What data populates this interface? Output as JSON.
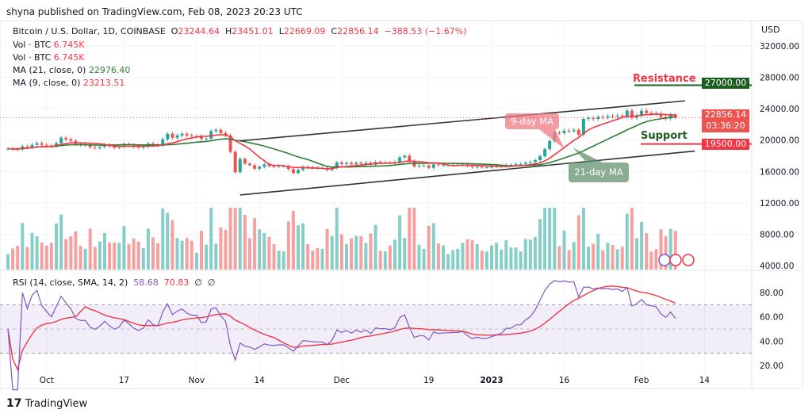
{
  "header": {
    "published": "shyna published on TradingView.com, Feb 08, 2023 20:23 UTC"
  },
  "legend": {
    "symbol": "Bitcoin / U.S. Dollar, 1D, COINBASE",
    "o_label": "O",
    "o": "23244.64",
    "h_label": "H",
    "h": "23451.01",
    "l_label": "L",
    "l": "22669.09",
    "c_label": "C",
    "c": "22856.14",
    "change": "−388.53 (−1.67%)",
    "vol1_label": "Vol · BTC",
    "vol1": "6.745K",
    "vol2_label": "Vol · BTC",
    "vol2": "6.745K",
    "ma21_label": "MA (21, close, 0)",
    "ma21": "22976.40",
    "ma9_label": "MA (9, close, 0)",
    "ma9": "23213.51"
  },
  "rsi_legend": {
    "label": "RSI (14, close, SMA, 14, 2)",
    "rsi": "58.68",
    "sma": "70.83",
    "extra1": "∅",
    "extra2": "∅"
  },
  "price_axis": {
    "currency": "USD",
    "ticks": [
      "32000.00",
      "28000.00",
      "24000.00",
      "20000.00",
      "16000.00",
      "12000.00",
      "8000.00",
      "4000.00"
    ]
  },
  "rsi_axis": {
    "ticks": [
      "80.00",
      "60.00",
      "40.00",
      "20.00"
    ]
  },
  "time_axis": {
    "ticks": [
      "Oct",
      "17",
      "Nov",
      "14",
      "Dec",
      "19",
      "2023",
      "16",
      "Feb",
      "14"
    ]
  },
  "labels": {
    "resistance": "Resistance",
    "resistance_price": "27000.00",
    "support": "Support",
    "support_price": "19500.00",
    "last_price": "22856.14",
    "countdown": "03:36:20",
    "ma9_callout": "9-day MA",
    "ma21_callout": "21-day MA"
  },
  "colors": {
    "up": "#26a69a",
    "down": "#ef5350",
    "ma9": "#f23645",
    "ma21": "#2e7d32",
    "rsi": "#7e57c2",
    "rsi_sma": "#f23645",
    "resistance": "#1b5e20",
    "support": "#f23645"
  },
  "footer": {
    "brand": "TradingView"
  },
  "chart_data": {
    "type": "candlestick",
    "x_start": "2022-09-23",
    "x_end": "2023-02-08",
    "ylim": [
      4000,
      32000
    ],
    "closes": [
      18900,
      18850,
      18800,
      19200,
      19100,
      19400,
      19600,
      19400,
      19300,
      19200,
      19600,
      20300,
      20100,
      19900,
      19500,
      19400,
      19400,
      19100,
      19000,
      19150,
      19400,
      19200,
      19050,
      19150,
      19500,
      19350,
      19150,
      19050,
      19150,
      19550,
      19350,
      19300,
      20100,
      20800,
      20300,
      20600,
      20800,
      20600,
      20500,
      20500,
      20150,
      20200,
      21150,
      21300,
      20900,
      20600,
      18500,
      15900,
      17600,
      17000,
      16800,
      16350,
      16600,
      16900,
      16700,
      16650,
      16700,
      16700,
      16300,
      15800,
      16200,
      16600,
      16550,
      16500,
      16450,
      16450,
      16200,
      16450,
      17150,
      16950,
      17100,
      16900,
      17100,
      16950,
      17100,
      16850,
      17200,
      17150,
      17150,
      17100,
      17200,
      17800,
      18000,
      17350,
      16650,
      16750,
      16750,
      16450,
      16900,
      16800,
      16830,
      16830,
      16850,
      16850,
      16900,
      16700,
      16550,
      16600,
      16550,
      16550,
      16600,
      16650,
      16700,
      16850,
      16850,
      16950,
      16950,
      17100,
      17200,
      17450,
      17950,
      18850,
      19900,
      20950,
      20900,
      21200,
      21150,
      21300,
      20700,
      22700,
      22800,
      22700,
      22950,
      22900,
      23050,
      23000,
      23100,
      23000,
      23750,
      22850,
      23150,
      23750,
      23450,
      23400,
      23350,
      22950,
      22750,
      23250,
      22856.14
    ],
    "last": {
      "open": 23244.64,
      "high": 23451.01,
      "low": 22669.09,
      "close": 22856.14
    },
    "resistance": 27000,
    "support": 19500,
    "channel_upper": [
      {
        "date": "2022-11-10",
        "price": 19900
      },
      {
        "date": "2023-02-10",
        "price": 25000
      }
    ],
    "channel_lower": [
      {
        "date": "2022-11-10",
        "price": 13000
      },
      {
        "date": "2023-02-12",
        "price": 18600
      }
    ],
    "rsi": {
      "period": 14,
      "sma": 14,
      "last": 58.68,
      "sma_last": 70.83,
      "bands": [
        30,
        50,
        70
      ],
      "ylim": [
        15,
        95
      ]
    },
    "moving_averages": [
      {
        "name": "MA (9, close, 0)",
        "last": 23213.51
      },
      {
        "name": "MA (21, close, 0)",
        "last": 22976.4
      }
    ]
  }
}
